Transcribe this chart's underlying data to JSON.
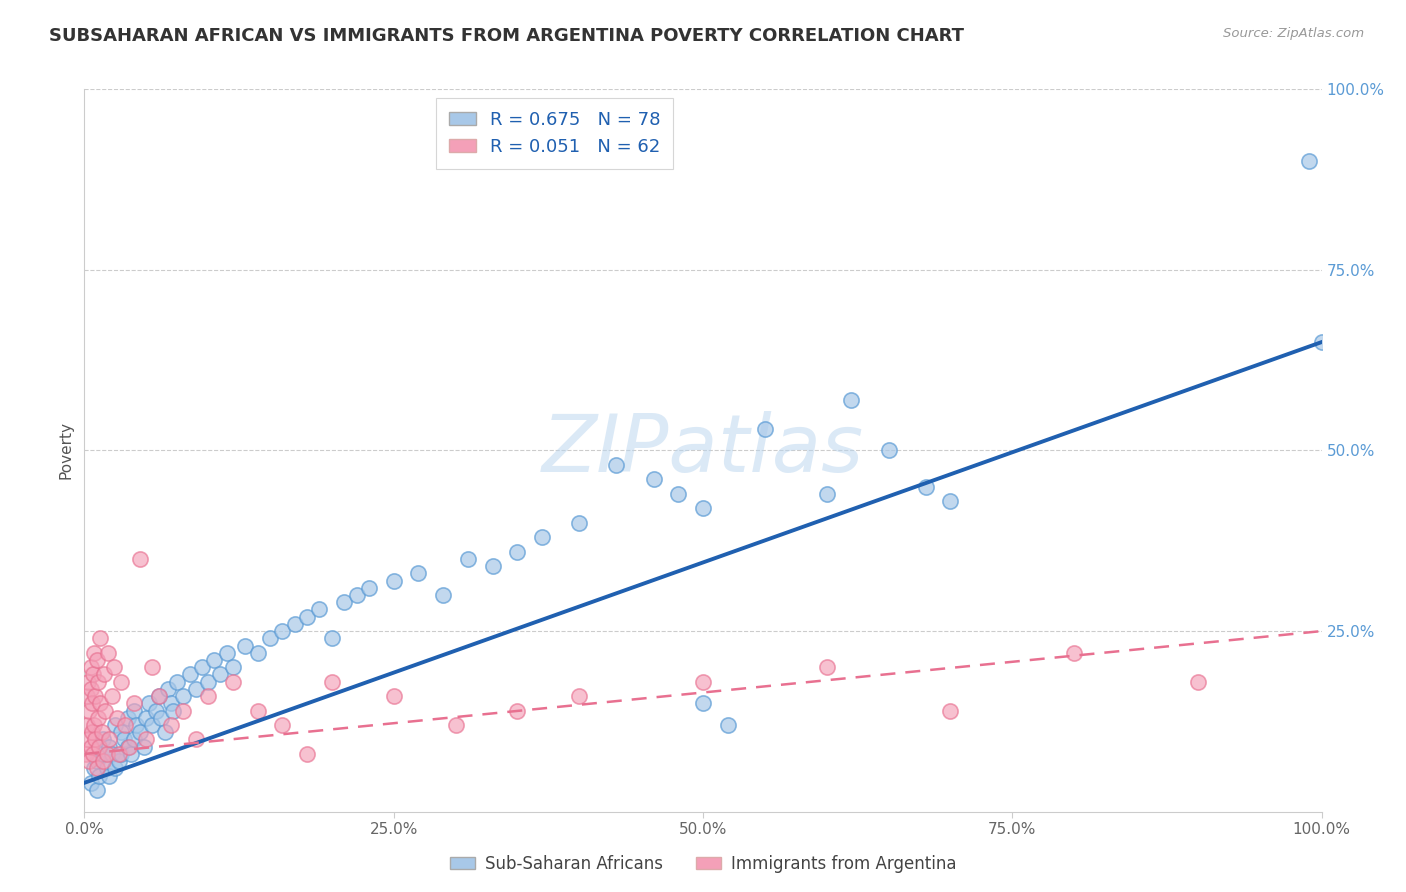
{
  "title": "SUBSAHARAN AFRICAN VS IMMIGRANTS FROM ARGENTINA POVERTY CORRELATION CHART",
  "source": "Source: ZipAtlas.com",
  "xlabel": "",
  "ylabel": "Poverty",
  "blue_R": 0.675,
  "blue_N": 78,
  "pink_R": 0.051,
  "pink_N": 62,
  "blue_color": "#a8c8e8",
  "pink_color": "#f4a0b8",
  "blue_edge_color": "#5b9bd5",
  "pink_edge_color": "#e87090",
  "blue_line_color": "#2060b0",
  "pink_line_color": "#e87090",
  "watermark": "ZIPatlas",
  "legend_label_blue": "Sub-Saharan Africans",
  "legend_label_pink": "Immigrants from Argentina",
  "xlim": [
    0,
    1
  ],
  "ylim": [
    0,
    1
  ],
  "xticks": [
    0.0,
    0.25,
    0.5,
    0.75,
    1.0
  ],
  "yticks_right": [
    0.25,
    0.5,
    0.75,
    1.0
  ],
  "blue_scatter_x": [
    0.005,
    0.008,
    0.01,
    0.01,
    0.012,
    0.015,
    0.015,
    0.018,
    0.02,
    0.02,
    0.022,
    0.025,
    0.025,
    0.028,
    0.03,
    0.03,
    0.032,
    0.035,
    0.035,
    0.038,
    0.04,
    0.04,
    0.042,
    0.045,
    0.048,
    0.05,
    0.052,
    0.055,
    0.058,
    0.06,
    0.062,
    0.065,
    0.068,
    0.07,
    0.072,
    0.075,
    0.08,
    0.085,
    0.09,
    0.095,
    0.1,
    0.105,
    0.11,
    0.115,
    0.12,
    0.13,
    0.14,
    0.15,
    0.16,
    0.17,
    0.18,
    0.19,
    0.2,
    0.21,
    0.22,
    0.23,
    0.25,
    0.27,
    0.29,
    0.31,
    0.33,
    0.35,
    0.37,
    0.4,
    0.43,
    0.46,
    0.48,
    0.5,
    0.55,
    0.6,
    0.62,
    0.65,
    0.68,
    0.7,
    0.5,
    0.52,
    0.99,
    1.0
  ],
  "blue_scatter_y": [
    0.04,
    0.06,
    0.03,
    0.07,
    0.05,
    0.08,
    0.1,
    0.06,
    0.05,
    0.09,
    0.08,
    0.06,
    0.12,
    0.07,
    0.08,
    0.11,
    0.1,
    0.09,
    0.13,
    0.08,
    0.1,
    0.14,
    0.12,
    0.11,
    0.09,
    0.13,
    0.15,
    0.12,
    0.14,
    0.16,
    0.13,
    0.11,
    0.17,
    0.15,
    0.14,
    0.18,
    0.16,
    0.19,
    0.17,
    0.2,
    0.18,
    0.21,
    0.19,
    0.22,
    0.2,
    0.23,
    0.22,
    0.24,
    0.25,
    0.26,
    0.27,
    0.28,
    0.24,
    0.29,
    0.3,
    0.31,
    0.32,
    0.33,
    0.3,
    0.35,
    0.34,
    0.36,
    0.38,
    0.4,
    0.48,
    0.46,
    0.44,
    0.42,
    0.53,
    0.44,
    0.57,
    0.5,
    0.45,
    0.43,
    0.15,
    0.12,
    0.9,
    0.65
  ],
  "pink_scatter_x": [
    0.001,
    0.002,
    0.002,
    0.003,
    0.003,
    0.004,
    0.004,
    0.005,
    0.005,
    0.005,
    0.006,
    0.006,
    0.007,
    0.007,
    0.008,
    0.008,
    0.009,
    0.009,
    0.01,
    0.01,
    0.011,
    0.011,
    0.012,
    0.013,
    0.013,
    0.014,
    0.015,
    0.016,
    0.017,
    0.018,
    0.019,
    0.02,
    0.022,
    0.024,
    0.026,
    0.028,
    0.03,
    0.033,
    0.036,
    0.04,
    0.045,
    0.05,
    0.055,
    0.06,
    0.07,
    0.08,
    0.09,
    0.1,
    0.12,
    0.14,
    0.16,
    0.18,
    0.2,
    0.25,
    0.3,
    0.35,
    0.4,
    0.5,
    0.6,
    0.7,
    0.8,
    0.9
  ],
  "pink_scatter_y": [
    0.08,
    0.12,
    0.16,
    0.1,
    0.18,
    0.07,
    0.14,
    0.09,
    0.17,
    0.2,
    0.11,
    0.15,
    0.08,
    0.19,
    0.12,
    0.22,
    0.1,
    0.16,
    0.06,
    0.21,
    0.13,
    0.18,
    0.09,
    0.15,
    0.24,
    0.11,
    0.07,
    0.19,
    0.14,
    0.08,
    0.22,
    0.1,
    0.16,
    0.2,
    0.13,
    0.08,
    0.18,
    0.12,
    0.09,
    0.15,
    0.35,
    0.1,
    0.2,
    0.16,
    0.12,
    0.14,
    0.1,
    0.16,
    0.18,
    0.14,
    0.12,
    0.08,
    0.18,
    0.16,
    0.12,
    0.14,
    0.16,
    0.18,
    0.2,
    0.14,
    0.22,
    0.18
  ]
}
